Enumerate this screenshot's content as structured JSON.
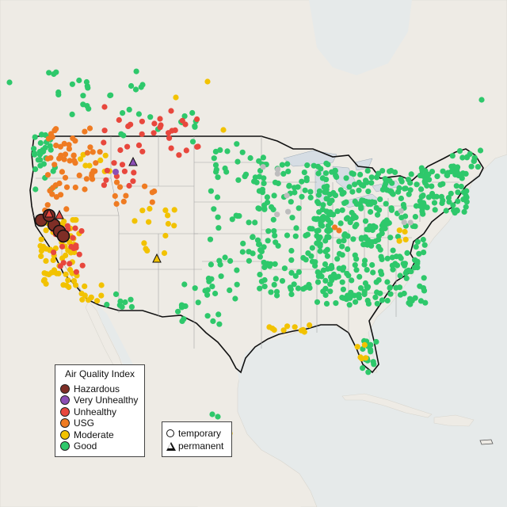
{
  "legend": {
    "title": "Air Quality Index",
    "categories": [
      {
        "label": "Hazardous",
        "color": "#7e2e26"
      },
      {
        "label": "Very Unhealthy",
        "color": "#8b4fb5"
      },
      {
        "label": "Unhealthy",
        "color": "#e8473d"
      },
      {
        "label": "USG",
        "color": "#ef7b22"
      },
      {
        "label": "Moderate",
        "color": "#f2c200"
      },
      {
        "label": "Good",
        "color": "#2ec86b"
      }
    ]
  },
  "monitor_types": {
    "temporary": "temporary",
    "permanent": "permanent"
  },
  "colors": {
    "ocean": "#e9ecec",
    "land": "#efece6",
    "us_land": "#eceae4",
    "border": "#111111",
    "state_lines": "#9a9a9a",
    "water": "#d4dce3",
    "no_data": "#bdbdbd"
  },
  "chart_data": {
    "type": "scatter",
    "title": "",
    "series": [
      {
        "name": "Hazardous",
        "shape": "circle",
        "region": "Northern California (Sacramento Valley / Sierra Nevada foothills)"
      },
      {
        "name": "Very Unhealthy",
        "shape": "circle",
        "region": "Northern California, western Montana"
      },
      {
        "name": "Unhealthy",
        "shape": "circle",
        "region": "Northern California, Oregon, Idaho, Montana, southern Saskatchewan/Alberta"
      },
      {
        "name": "USG",
        "shape": "circle",
        "region": "Oregon, Washington, Idaho, Nevada, Utah, Wyoming"
      },
      {
        "name": "Moderate",
        "shape": "circle",
        "region": "California, Nevada, Utah, Colorado, Gulf Coast, Florida"
      },
      {
        "name": "Good",
        "shape": "circle",
        "region": "Most of central and eastern US and Canada"
      }
    ]
  }
}
